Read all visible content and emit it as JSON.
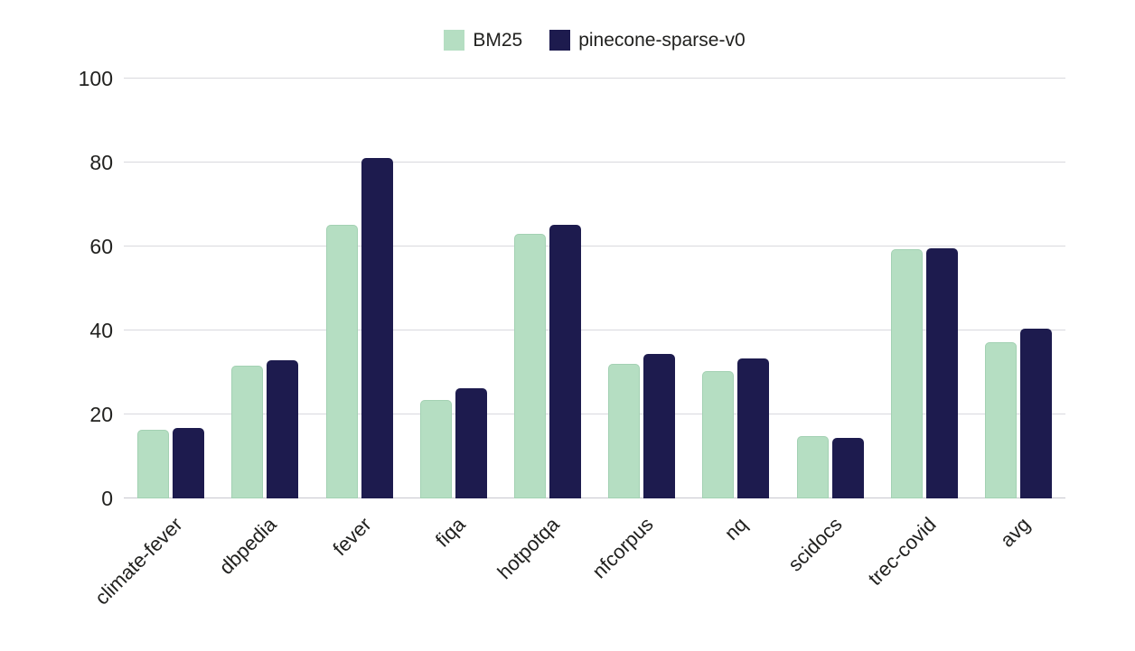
{
  "chart_data": {
    "type": "bar",
    "title": "",
    "xlabel": "",
    "ylabel": "",
    "categories": [
      "climate-fever",
      "dbpedia",
      "fever",
      "fiqa",
      "hotpotqa",
      "nfcorpus",
      "nq",
      "scidocs",
      "trec-covid",
      "avg"
    ],
    "series": [
      {
        "name": "BM25",
        "color": "#b5dec2",
        "values": [
          16.4,
          31.7,
          65.1,
          23.5,
          63.0,
          32.1,
          30.4,
          14.9,
          59.3,
          37.3
        ]
      },
      {
        "name": "pinecone-sparse-v0",
        "color": "#1d1b4e",
        "values": [
          16.7,
          32.9,
          81.0,
          26.3,
          65.2,
          34.5,
          33.4,
          14.5,
          59.6,
          40.5
        ]
      }
    ],
    "ylim": [
      0,
      100
    ],
    "yticks": [
      0,
      20,
      40,
      60,
      80,
      100
    ],
    "grid": true,
    "legend_position": "top-center"
  },
  "colors": {
    "background": "#ffffff",
    "gridline": "#d9d9de",
    "axis_text": "#21211f",
    "bm25": "#b5dec2",
    "pinecone_sparse_v0": "#1d1b4e"
  }
}
